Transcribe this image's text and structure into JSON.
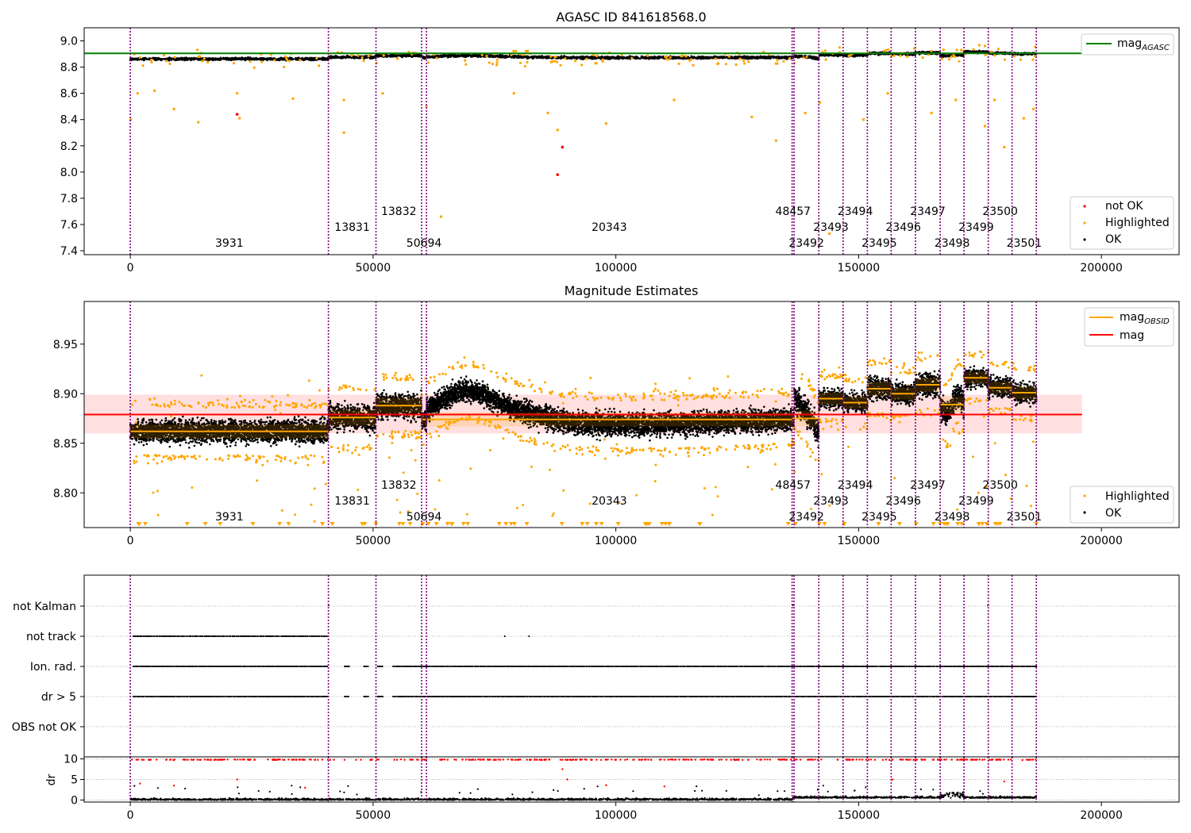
{
  "colors": {
    "ok": "#000000",
    "highlighted": "#ffa500",
    "not_ok": "#ff0000",
    "mag_agasc": "#008000",
    "mag_obsid": "#ffa500",
    "mag": "#ff0000",
    "obs_line": "#800080",
    "band": "#ffc0c0"
  },
  "chart_data": [
    {
      "type": "scatter",
      "title": "AGASC ID 841618568.0",
      "xlim": [
        -9500,
        216000
      ],
      "ylim": [
        7.37,
        9.1
      ],
      "x_ticks": [
        0,
        50000,
        100000,
        150000,
        200000
      ],
      "y_ticks": [
        7.4,
        7.6,
        7.8,
        8.0,
        8.2,
        8.4,
        8.6,
        8.8,
        9.0
      ],
      "hlines": [
        {
          "name": "mag_AGASC",
          "y": 8.905,
          "x_range": [
            -9500,
            196000
          ]
        }
      ],
      "legend_lines": [
        {
          "name": "mag",
          "sub": "AGASC"
        }
      ],
      "legend_points": [
        "not OK",
        "Highlighted",
        "OK"
      ],
      "not_ok_points": [
        [
          22000,
          8.44
        ],
        [
          88000,
          7.98
        ],
        [
          89000,
          8.19
        ]
      ],
      "highlighted_points": [
        [
          100,
          8.4
        ],
        [
          1500,
          8.6
        ],
        [
          5000,
          8.62
        ],
        [
          9000,
          8.48
        ],
        [
          14000,
          8.38
        ],
        [
          22500,
          8.41
        ],
        [
          22000,
          8.6
        ],
        [
          33500,
          8.56
        ],
        [
          44000,
          8.3
        ],
        [
          44000,
          8.55
        ],
        [
          52000,
          8.6
        ],
        [
          61000,
          8.5
        ],
        [
          64000,
          7.66
        ],
        [
          79000,
          8.6
        ],
        [
          88000,
          8.32
        ],
        [
          86000,
          8.45
        ],
        [
          98000,
          8.37
        ],
        [
          112000,
          8.55
        ],
        [
          128000,
          8.42
        ],
        [
          133000,
          8.24
        ],
        [
          139000,
          8.45
        ],
        [
          142000,
          8.53
        ],
        [
          144000,
          7.53
        ],
        [
          151000,
          8.4
        ],
        [
          156000,
          8.6
        ],
        [
          165000,
          8.45
        ],
        [
          170000,
          8.55
        ],
        [
          176000,
          8.35
        ],
        [
          178000,
          8.55
        ],
        [
          180000,
          8.19
        ],
        [
          184000,
          8.41
        ],
        [
          186000,
          8.48
        ]
      ]
    },
    {
      "type": "scatter",
      "title": "Magnitude Estimates",
      "xlim": [
        -9500,
        216000
      ],
      "ylim": [
        8.765,
        8.993
      ],
      "x_ticks": [
        0,
        50000,
        100000,
        150000,
        200000
      ],
      "y_ticks": [
        8.8,
        8.85,
        8.9,
        8.95
      ],
      "mag_line": {
        "name": "mag",
        "y": 8.879,
        "band": [
          8.86,
          8.899
        ],
        "x_range": [
          -9500,
          196000
        ]
      },
      "legend_lines": [
        {
          "name": "mag",
          "sub": "OBSID"
        },
        {
          "name": "mag",
          "sub": ""
        }
      ],
      "legend_points": [
        "Highlighted",
        "OK"
      ]
    },
    {
      "type": "scatter",
      "title": "",
      "xlim": [
        -9500,
        216000
      ],
      "categories": [
        "not Kalman",
        "not track",
        "Ion. rad.",
        "dr > 5",
        "OBS not OK"
      ],
      "dr_ylabel": "dr",
      "dr_ylim": [
        -0.5,
        10.5
      ],
      "dr_ticks": [
        0,
        5,
        10
      ],
      "x_ticks": [
        0,
        50000,
        100000,
        150000,
        200000
      ]
    }
  ],
  "observations": [
    {
      "obsid": "3931",
      "start": 0,
      "end": 40800,
      "mag": 8.862,
      "std": 0.014,
      "label_row": 2
    },
    {
      "obsid": "13831",
      "start": 40800,
      "end": 50600,
      "mag": 8.876,
      "std": 0.016,
      "label_row": 1
    },
    {
      "obsid": "13832",
      "start": 50600,
      "end": 60000,
      "mag": 8.888,
      "std": 0.015,
      "label_row": 0
    },
    {
      "obsid": "50694",
      "start": 60000,
      "end": 61000,
      "mag": 8.874,
      "std": 0.012,
      "label_row": 2
    },
    {
      "obsid": "20343",
      "start": 61000,
      "end": 136300,
      "mag": 8.874,
      "std": 0.014,
      "label_row": 1
    },
    {
      "obsid": "48457",
      "start": 136300,
      "end": 136700,
      "mag": 8.875,
      "std": 0.012,
      "label_row": 0
    },
    {
      "obsid": "23492",
      "start": 136700,
      "end": 141800,
      "mag": 8.875,
      "std": 0.016,
      "label_row": 2
    },
    {
      "obsid": "23493",
      "start": 141800,
      "end": 146800,
      "mag": 8.895,
      "std": 0.012,
      "label_row": 1
    },
    {
      "obsid": "23494",
      "start": 146800,
      "end": 151800,
      "mag": 8.891,
      "std": 0.012,
      "label_row": 0
    },
    {
      "obsid": "23495",
      "start": 151800,
      "end": 156700,
      "mag": 8.905,
      "std": 0.014,
      "label_row": 2
    },
    {
      "obsid": "23496",
      "start": 156700,
      "end": 161700,
      "mag": 8.9,
      "std": 0.012,
      "label_row": 1
    },
    {
      "obsid": "23497",
      "start": 161700,
      "end": 166800,
      "mag": 8.909,
      "std": 0.014,
      "label_row": 0
    },
    {
      "obsid": "23498",
      "start": 166800,
      "end": 171700,
      "mag": 8.889,
      "std": 0.016,
      "label_row": 2
    },
    {
      "obsid": "23499",
      "start": 171700,
      "end": 176700,
      "mag": 8.916,
      "std": 0.012,
      "label_row": 1
    },
    {
      "obsid": "23500",
      "start": 176700,
      "end": 181600,
      "mag": 8.906,
      "std": 0.012,
      "label_row": 0
    },
    {
      "obsid": "23501",
      "start": 181600,
      "end": 186600,
      "mag": 8.901,
      "std": 0.013,
      "label_row": 2
    }
  ]
}
